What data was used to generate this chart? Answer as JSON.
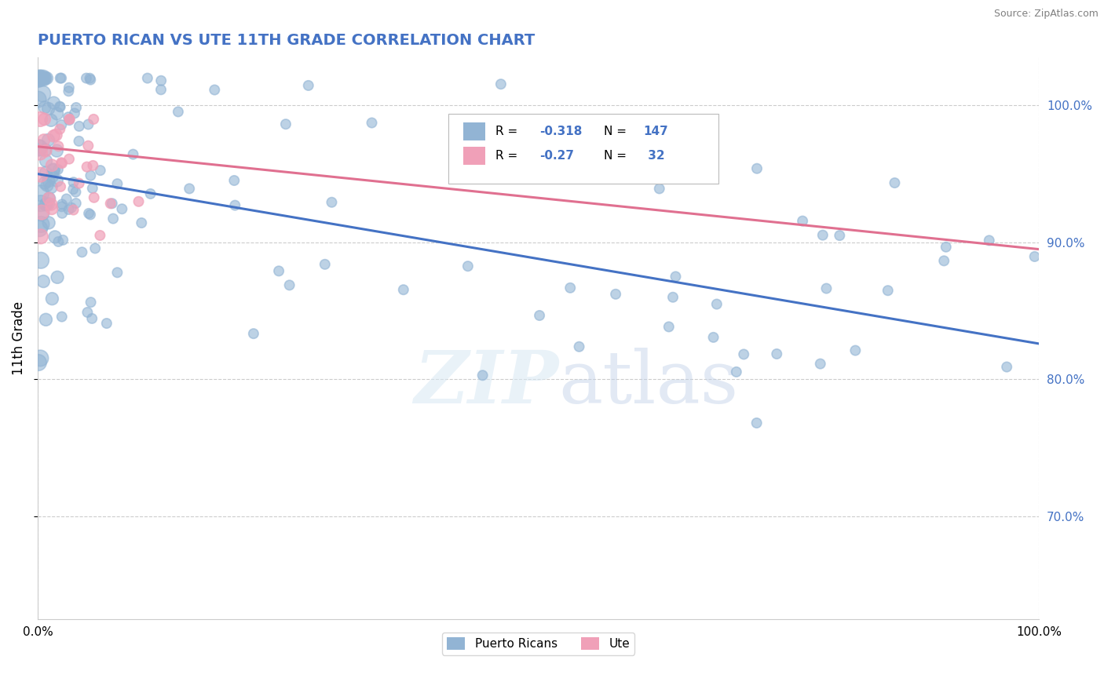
{
  "title": "PUERTO RICAN VS UTE 11TH GRADE CORRELATION CHART",
  "source_text": "Source: ZipAtlas.com",
  "ylabel": "11th Grade",
  "xlim": [
    0.0,
    1.0
  ],
  "ylim": [
    0.625,
    1.035
  ],
  "right_ytick_positions": [
    1.0,
    0.9,
    0.8,
    0.7
  ],
  "right_yticklabels": [
    "100.0%",
    "90.0%",
    "80.0%",
    "70.0%"
  ],
  "blue_R": -0.318,
  "blue_N": 147,
  "pink_R": -0.27,
  "pink_N": 32,
  "blue_color": "#92b4d4",
  "pink_color": "#f0a0b8",
  "blue_line_color": "#4472c4",
  "pink_line_color": "#e07090",
  "legend_label_blue": "Puerto Ricans",
  "legend_label_pink": "Ute",
  "watermark": "ZIPatlas",
  "background_color": "#ffffff",
  "grid_color": "#cccccc",
  "title_color": "#4472c4",
  "blue_line_start_y": 0.95,
  "blue_line_end_y": 0.826,
  "pink_line_start_y": 0.97,
  "pink_line_end_y": 0.895
}
